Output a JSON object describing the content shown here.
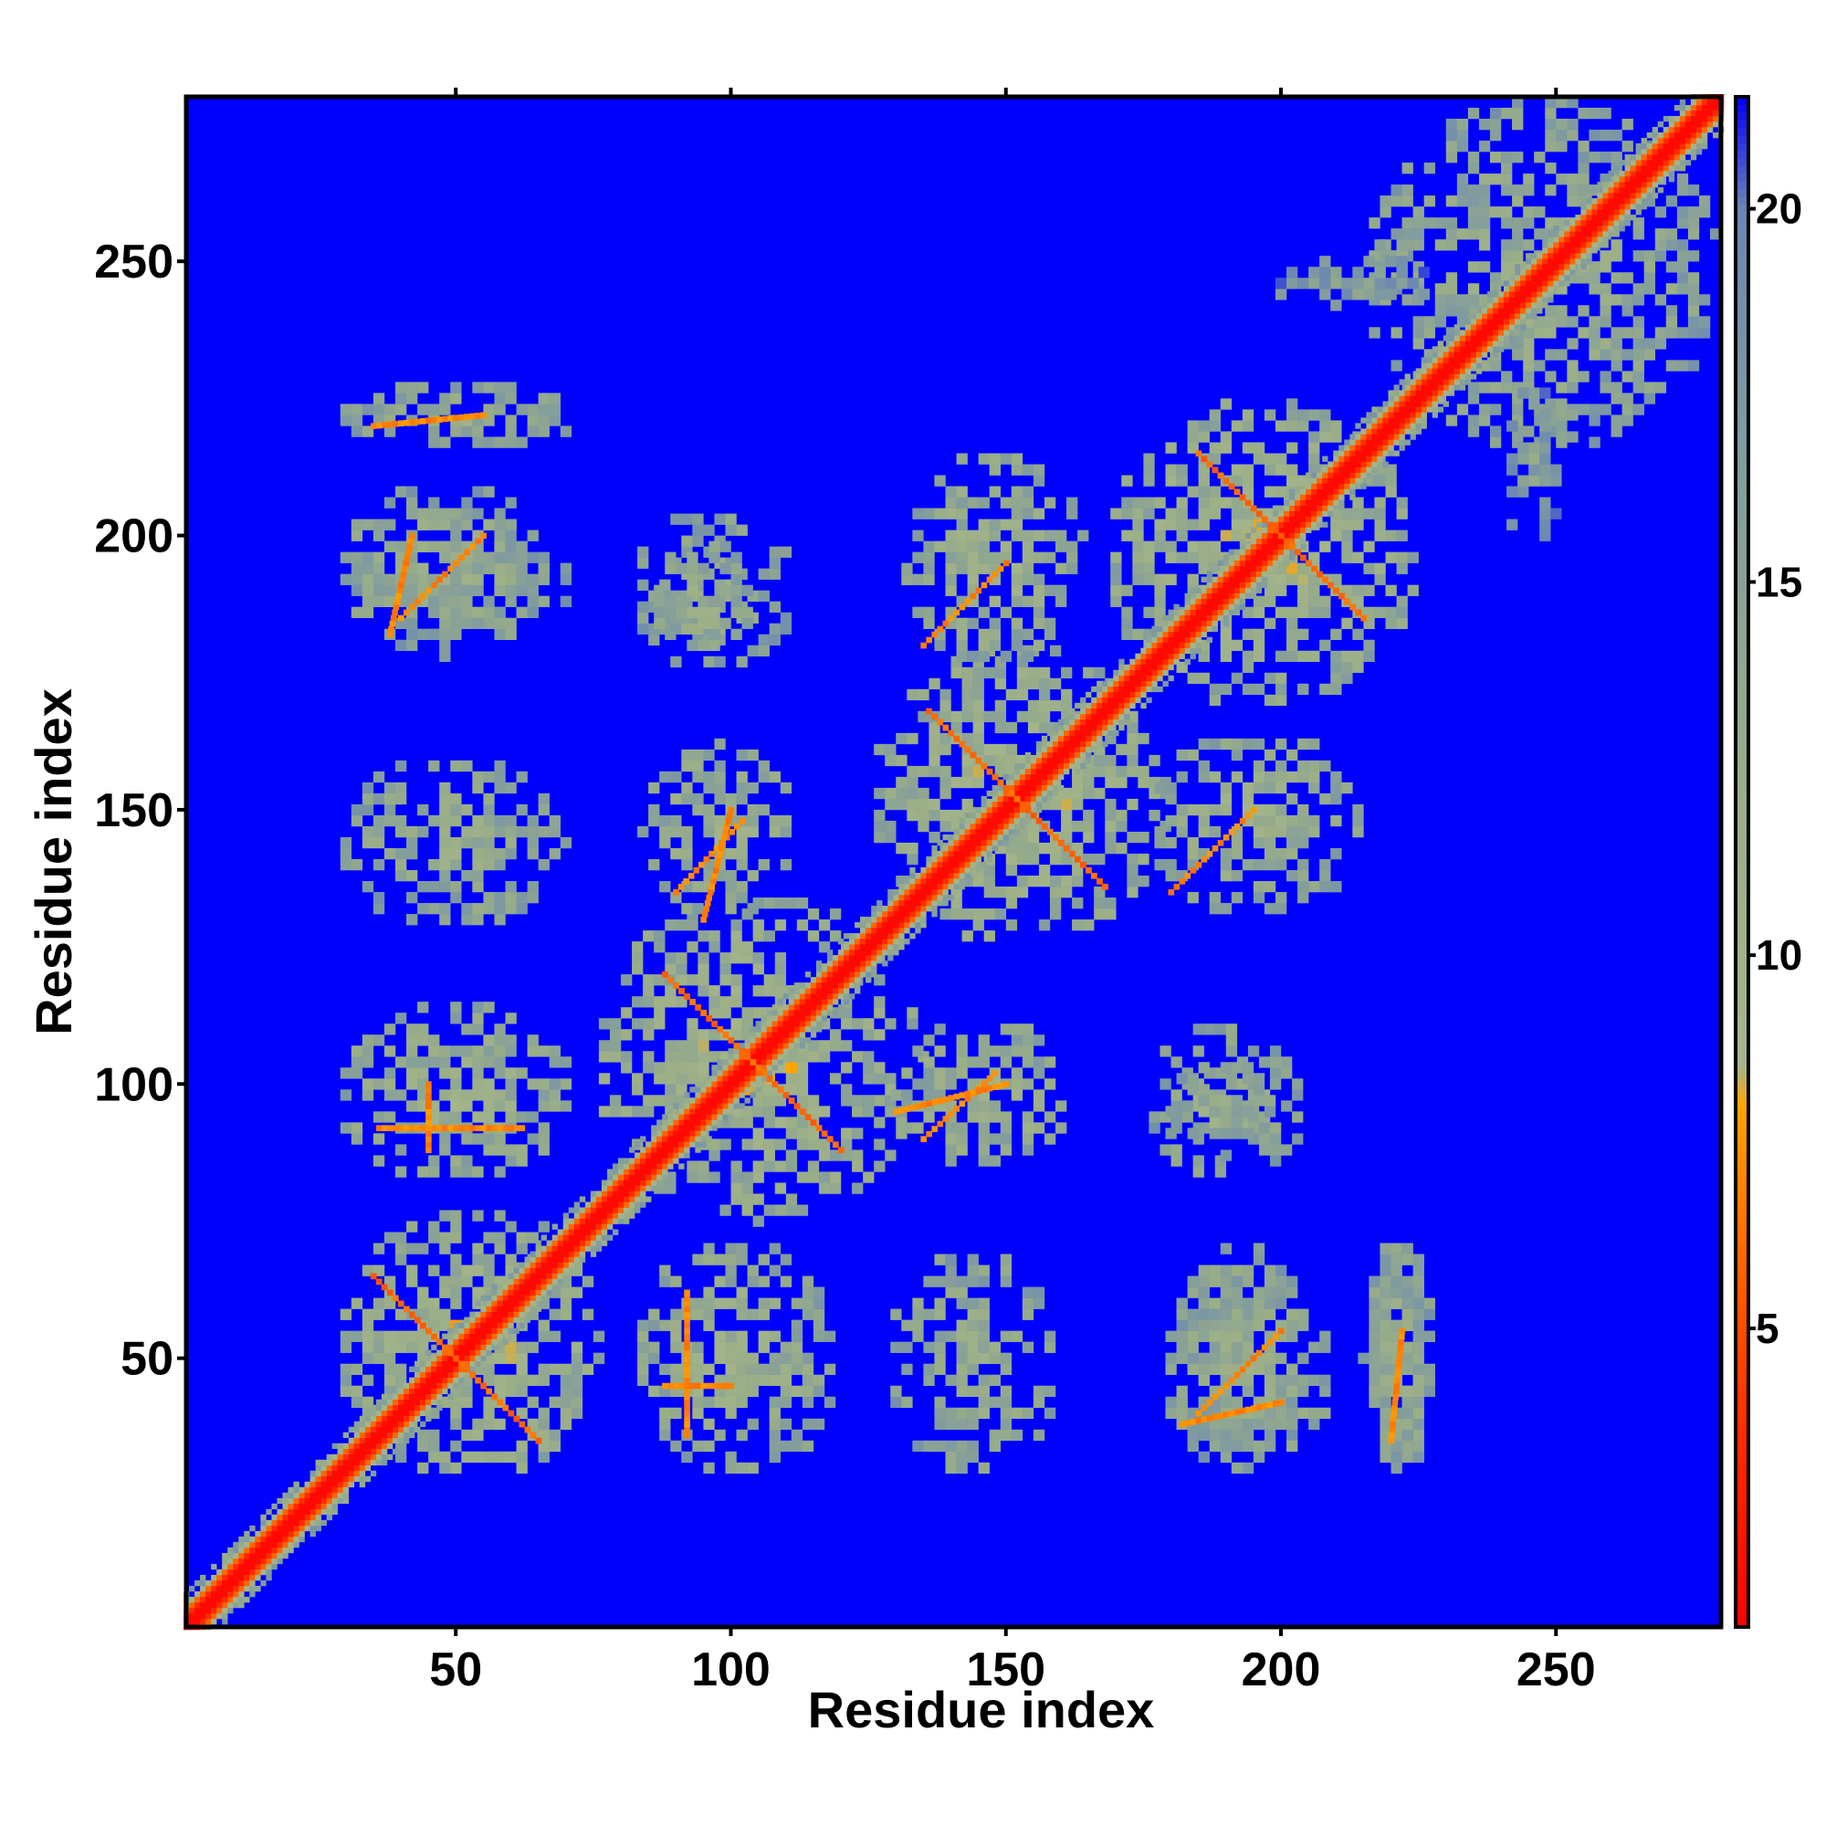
{
  "chart_data": {
    "type": "heatmap",
    "title": "",
    "xlabel": "Residue index",
    "ylabel": "Residue index",
    "xlim": [
      1,
      280
    ],
    "ylim": [
      1,
      280
    ],
    "x_ticks": [
      50,
      100,
      150,
      200,
      250
    ],
    "y_ticks": [
      50,
      100,
      150,
      200,
      250
    ],
    "x_tick_labels": [
      "50",
      "100",
      "150",
      "200",
      "250"
    ],
    "y_tick_labels": [
      "50",
      "100",
      "150",
      "200",
      "250"
    ],
    "colorbar": {
      "range": [
        1,
        21.5
      ],
      "ticks": [
        5,
        10,
        15,
        20
      ],
      "tick_labels": [
        "5",
        "10",
        "15",
        "20"
      ],
      "colors": [
        {
          "value": 1,
          "color": "#ff0000"
        },
        {
          "value": 4,
          "color": "#ff3300"
        },
        {
          "value": 6,
          "color": "#ff6600"
        },
        {
          "value": 8,
          "color": "#ffa500"
        },
        {
          "value": 8.5,
          "color": "#a5b58a"
        },
        {
          "value": 12,
          "color": "#9aae88"
        },
        {
          "value": 17,
          "color": "#7f9aa0"
        },
        {
          "value": 20,
          "color": "#6a86b4"
        },
        {
          "value": 21.5,
          "color": "#0000ff"
        }
      ]
    },
    "background_color": "#0000ff",
    "legend": "colorbar-right",
    "grid": false,
    "value_description": "pairwise residue distance; diagonal symmetric contact map",
    "diagonal": {
      "from": 1,
      "to": 280,
      "value": 2
    },
    "blocks": [
      {
        "x": [
          28,
          78
        ],
        "y": [
          28,
          78
        ],
        "value": 10
      },
      {
        "x": [
          75,
          135
        ],
        "y": [
          75,
          135
        ],
        "value": 10
      },
      {
        "x": [
          125,
          180
        ],
        "y": [
          125,
          180
        ],
        "value": 10
      },
      {
        "x": [
          168,
          225
        ],
        "y": [
          168,
          225
        ],
        "value": 10
      },
      {
        "x": [
          215,
          280
        ],
        "y": [
          215,
          280
        ],
        "value": 12
      },
      {
        "x": [
          28,
          72
        ],
        "y": [
          82,
          115
        ],
        "value": 11
      },
      {
        "x": [
          82,
          120
        ],
        "y": [
          28,
          72
        ],
        "value": 11
      },
      {
        "x": [
          28,
          70
        ],
        "y": [
          128,
          160
        ],
        "value": 12
      },
      {
        "x": [
          128,
          160
        ],
        "y": [
          28,
          70
        ],
        "value": 12
      },
      {
        "x": [
          28,
          72
        ],
        "y": [
          180,
          205
        ],
        "value": 12
      },
      {
        "x": [
          180,
          205
        ],
        "y": [
          28,
          72
        ],
        "value": 12
      },
      {
        "x": [
          28,
          72
        ],
        "y": [
          215,
          228
        ],
        "value": 12
      },
      {
        "x": [
          215,
          228
        ],
        "y": [
          28,
          72
        ],
        "value": 12
      },
      {
        "x": [
          84,
          112
        ],
        "y": [
          130,
          162
        ],
        "value": 11
      },
      {
        "x": [
          130,
          162
        ],
        "y": [
          84,
          112
        ],
        "value": 11
      },
      {
        "x": [
          82,
          112
        ],
        "y": [
          175,
          205
        ],
        "value": 12
      },
      {
        "x": [
          175,
          205
        ],
        "y": [
          82,
          112
        ],
        "value": 12
      },
      {
        "x": [
          130,
          165
        ],
        "y": [
          176,
          215
        ],
        "value": 11
      },
      {
        "x": [
          176,
          215
        ],
        "y": [
          130,
          165
        ],
        "value": 11
      },
      {
        "x": [
          178,
          200
        ],
        "y": [
          85,
          105
        ],
        "value": 12
      },
      {
        "x": [
          85,
          105
        ],
        "y": [
          178,
          200
        ],
        "value": 12
      },
      {
        "x": [
          178,
          210
        ],
        "y": [
          28,
          68
        ],
        "value": 12
      },
      {
        "x": [
          28,
          68
        ],
        "y": [
          178,
          210
        ],
        "value": 12
      },
      {
        "x": [
          215,
          228
        ],
        "y": [
          28,
          72
        ],
        "value": 12
      },
      {
        "x": [
          216,
          225
        ],
        "y": [
          245,
          255
        ],
        "value": 13
      },
      {
        "x": [
          245,
          255
        ],
        "y": [
          216,
          225
        ],
        "value": 13
      },
      {
        "x": [
          240,
          252
        ],
        "y": [
          198,
          228
        ],
        "value": 15
      },
      {
        "x": [
          198,
          228
        ],
        "y": [
          240,
          252
        ],
        "value": 15
      }
    ],
    "contact_lines": [
      {
        "from": [
          35,
          65
        ],
        "to": [
          65,
          35
        ],
        "value": 6
      },
      {
        "from": [
          88,
          120
        ],
        "to": [
          120,
          88
        ],
        "value": 6
      },
      {
        "from": [
          136,
          168
        ],
        "to": [
          168,
          136
        ],
        "value": 6
      },
      {
        "from": [
          185,
          215
        ],
        "to": [
          215,
          185
        ],
        "value": 6
      },
      {
        "from": [
          36,
          92
        ],
        "to": [
          62,
          92
        ],
        "value": 7
      },
      {
        "from": [
          40,
          185
        ],
        "to": [
          55,
          200
        ],
        "value": 7
      },
      {
        "from": [
          88,
          45
        ],
        "to": [
          100,
          45
        ],
        "value": 7
      },
      {
        "from": [
          90,
          135
        ],
        "to": [
          102,
          148
        ],
        "value": 7
      },
      {
        "from": [
          182,
          38
        ],
        "to": [
          200,
          42
        ],
        "value": 7
      },
      {
        "from": [
          180,
          135
        ],
        "to": [
          195,
          150
        ],
        "value": 7
      },
      {
        "from": [
          130,
          95
        ],
        "to": [
          150,
          100
        ],
        "value": 7
      },
      {
        "from": [
          220,
          35
        ],
        "to": [
          222,
          55
        ],
        "value": 7
      }
    ]
  }
}
